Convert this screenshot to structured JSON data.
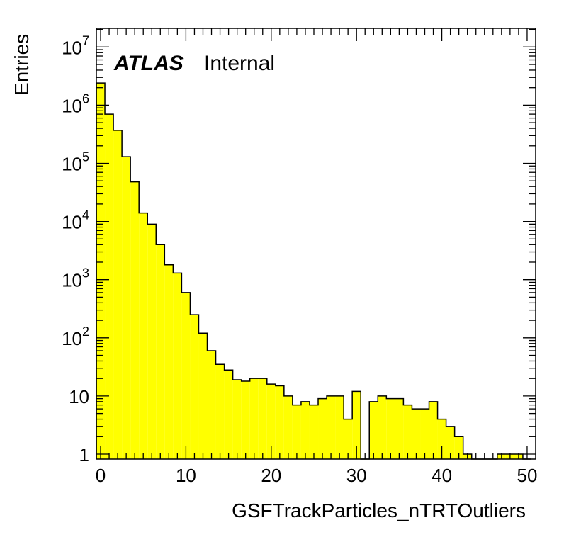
{
  "chart_data": {
    "type": "bar",
    "subtype": "histogram",
    "label_bold": "ATLAS",
    "label_status": "Internal",
    "xlabel": "GSFTrackParticles_nTRTOutliers",
    "ylabel": "Entries",
    "xlim": [
      -0.5,
      51
    ],
    "ylim": [
      0.8,
      25000000
    ],
    "yscale": "log",
    "bin_width": 1,
    "x_start": -0.5,
    "x_ticks": [
      "0",
      "10",
      "20",
      "30",
      "40",
      "50"
    ],
    "y_ticks": [
      {
        "base": "1",
        "exp": ""
      },
      {
        "base": "10",
        "exp": ""
      },
      {
        "base": "10",
        "exp": "2"
      },
      {
        "base": "10",
        "exp": "3"
      },
      {
        "base": "10",
        "exp": "4"
      },
      {
        "base": "10",
        "exp": "5"
      },
      {
        "base": "10",
        "exp": "6"
      },
      {
        "base": "10",
        "exp": "7"
      }
    ],
    "values": [
      2400000,
      700000,
      370000,
      130000,
      48000,
      14000,
      9000,
      4000,
      1800,
      1300,
      600,
      250,
      120,
      60,
      35,
      28,
      19,
      18,
      20,
      20,
      16,
      15,
      10,
      7,
      8,
      7,
      9,
      10,
      10,
      4,
      12,
      0,
      8,
      10,
      9,
      9,
      7,
      6,
      6,
      8,
      4,
      3,
      2,
      1,
      0,
      0,
      0,
      1,
      1,
      1,
      0
    ],
    "fill_color": "#ffff00",
    "line_color": "#000000",
    "grid": false,
    "legend": "none"
  }
}
